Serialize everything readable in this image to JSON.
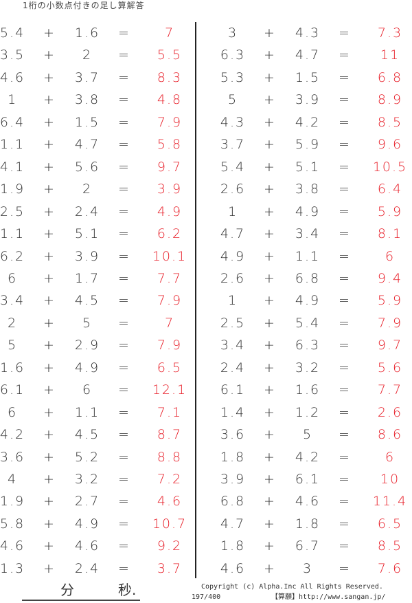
{
  "title": "1桁の小数点付きの足し算解答",
  "operator": "+",
  "equals": "=",
  "colors": {
    "answer": "#e8202a",
    "text": "#333333"
  },
  "left": [
    [
      "5.4",
      "1.6",
      "7"
    ],
    [
      "3.5",
      "2",
      "5.5"
    ],
    [
      "4.6",
      "3.7",
      "8.3"
    ],
    [
      "1",
      "3.8",
      "4.8"
    ],
    [
      "6.4",
      "1.5",
      "7.9"
    ],
    [
      "1.1",
      "4.7",
      "5.8"
    ],
    [
      "4.1",
      "5.6",
      "9.7"
    ],
    [
      "1.9",
      "2",
      "3.9"
    ],
    [
      "2.5",
      "2.4",
      "4.9"
    ],
    [
      "1.1",
      "5.1",
      "6.2"
    ],
    [
      "6.2",
      "3.9",
      "10.1"
    ],
    [
      "6",
      "1.7",
      "7.7"
    ],
    [
      "3.4",
      "4.5",
      "7.9"
    ],
    [
      "2",
      "5",
      "7"
    ],
    [
      "5",
      "2.9",
      "7.9"
    ],
    [
      "1.6",
      "4.9",
      "6.5"
    ],
    [
      "6.1",
      "6",
      "12.1"
    ],
    [
      "6",
      "1.1",
      "7.1"
    ],
    [
      "4.2",
      "4.5",
      "8.7"
    ],
    [
      "3.6",
      "5.2",
      "8.8"
    ],
    [
      "4",
      "3.2",
      "7.2"
    ],
    [
      "1.9",
      "2.7",
      "4.6"
    ],
    [
      "5.8",
      "4.9",
      "10.7"
    ],
    [
      "4.6",
      "4.6",
      "9.2"
    ],
    [
      "1.3",
      "2.4",
      "3.7"
    ]
  ],
  "right": [
    [
      "3",
      "4.3",
      "7.3"
    ],
    [
      "6.3",
      "4.7",
      "11"
    ],
    [
      "5.3",
      "1.5",
      "6.8"
    ],
    [
      "5",
      "3.9",
      "8.9"
    ],
    [
      "4.3",
      "4.2",
      "8.5"
    ],
    [
      "3.7",
      "5.9",
      "9.6"
    ],
    [
      "5.4",
      "5.1",
      "10.5"
    ],
    [
      "2.6",
      "3.8",
      "6.4"
    ],
    [
      "1",
      "4.9",
      "5.9"
    ],
    [
      "4.7",
      "3.4",
      "8.1"
    ],
    [
      "4.9",
      "1.1",
      "6"
    ],
    [
      "2.6",
      "6.8",
      "9.4"
    ],
    [
      "1",
      "4.9",
      "5.9"
    ],
    [
      "2.5",
      "5.4",
      "7.9"
    ],
    [
      "3.4",
      "6.3",
      "9.7"
    ],
    [
      "2.4",
      "3.2",
      "5.6"
    ],
    [
      "6.1",
      "1.6",
      "7.7"
    ],
    [
      "1.4",
      "1.2",
      "2.6"
    ],
    [
      "3.6",
      "5",
      "8.6"
    ],
    [
      "1.8",
      "4.2",
      "6"
    ],
    [
      "3.9",
      "6.1",
      "10"
    ],
    [
      "6.8",
      "4.6",
      "11.4"
    ],
    [
      "4.7",
      "1.8",
      "6.5"
    ],
    [
      "1.8",
      "6.7",
      "8.5"
    ],
    [
      "4.6",
      "3",
      "7.6"
    ]
  ],
  "footer": {
    "minutes": "分",
    "seconds": "秒.",
    "copyright": "Copyright (c)  Alpha.Inc All Rights Reserved.",
    "page": "197/400",
    "site": "【算願】http://www.sangan.jp/"
  }
}
